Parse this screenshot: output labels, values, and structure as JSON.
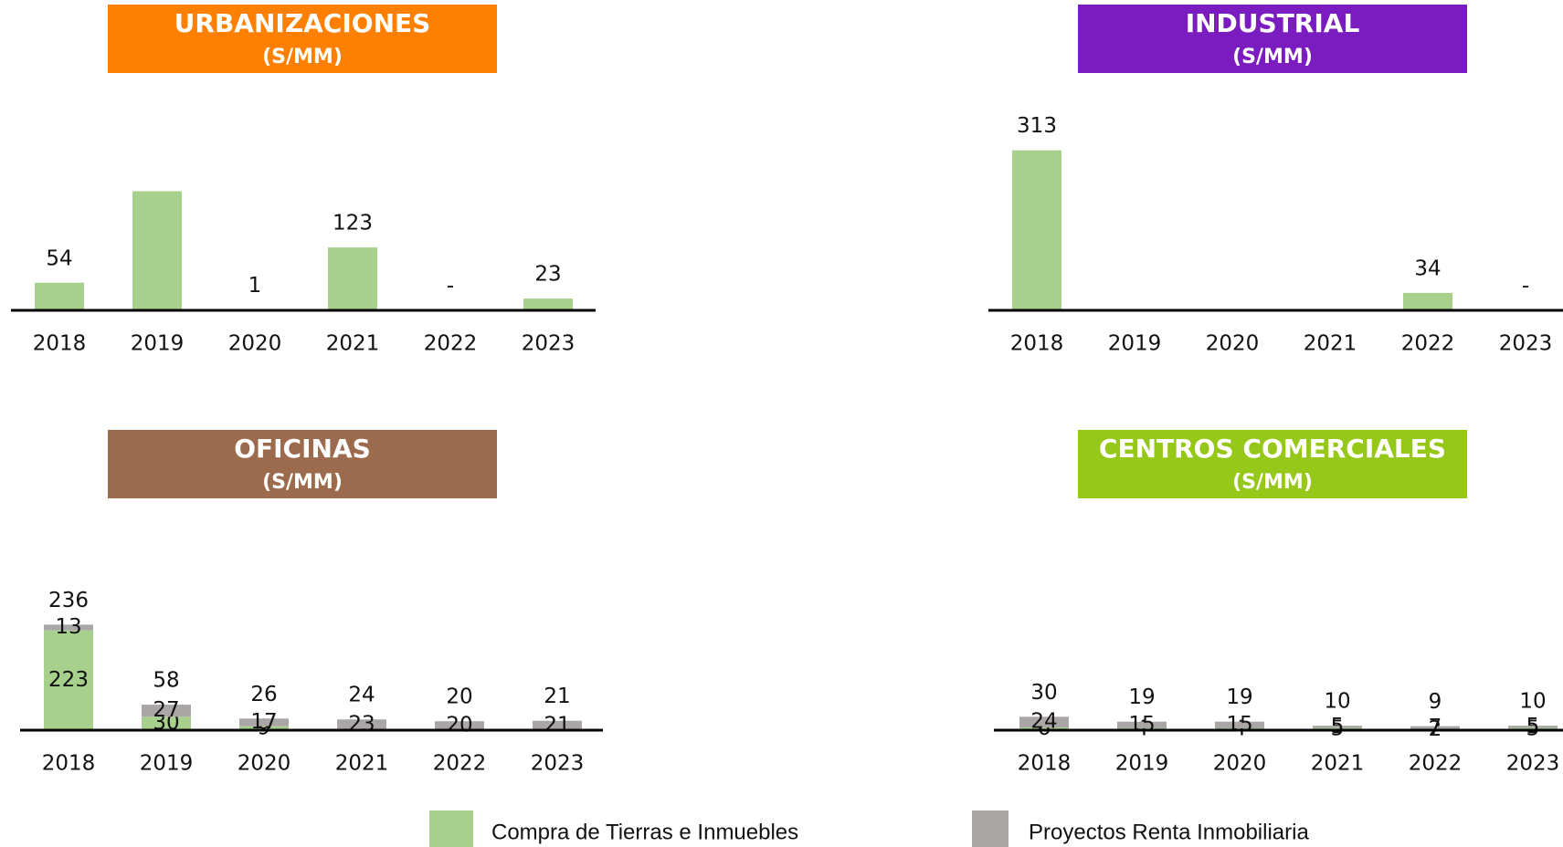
{
  "chart_data": [
    {
      "type": "bar",
      "title": "URBANIZACIONES",
      "subtitle": "(S/MM)",
      "header_color": "#ff8000",
      "categories": [
        "2018",
        "2019",
        "2020",
        "2021",
        "2022",
        "2023"
      ],
      "ylim": [
        0,
        350
      ],
      "series": [
        {
          "name": "Compra de Tierras e Inmuebles",
          "color": "#a8d08d",
          "values": [
            54,
            233,
            1,
            123,
            0,
            23
          ],
          "value_labels": [
            "54",
            null,
            "1",
            "123",
            "-",
            "23"
          ]
        }
      ]
    },
    {
      "type": "bar",
      "title": "INDUSTRIAL",
      "subtitle": "(S/MM)",
      "header_color": "#7a1cc0",
      "categories": [
        "2018",
        "2019",
        "2020",
        "2021",
        "2022",
        "2023"
      ],
      "ylim": [
        0,
        350
      ],
      "series": [
        {
          "name": "Compra de Tierras e Inmuebles",
          "color": "#a8d08d",
          "values": [
            313,
            1,
            0,
            0,
            34,
            0
          ],
          "value_labels": [
            "313",
            null,
            null,
            null,
            "34",
            "-"
          ]
        }
      ]
    },
    {
      "type": "stacked_bar",
      "title": "OFICINAS",
      "subtitle": "(S/MM)",
      "header_color": "#9c6b4e",
      "categories": [
        "2018",
        "2019",
        "2020",
        "2021",
        "2022",
        "2023"
      ],
      "ylim": [
        0,
        400
      ],
      "totals": [
        236,
        58,
        26,
        24,
        20,
        21
      ],
      "series": [
        {
          "name": "Compra de Tierras e Inmuebles",
          "color": "#a8d08d",
          "values": [
            223,
            30,
            9,
            1,
            0,
            0
          ],
          "value_labels": [
            "223",
            "30",
            "9",
            null,
            null,
            null
          ]
        },
        {
          "name": "Proyectos Renta Inmobiliaria",
          "color": "#aaa6a6",
          "values": [
            13,
            27,
            17,
            23,
            20,
            21
          ]
        }
      ]
    },
    {
      "type": "stacked_bar",
      "title": "CENTROS COMERCIALES",
      "subtitle": "(S/MM)",
      "header_color": "#96c81a",
      "categories": [
        "2018",
        "2019",
        "2020",
        "2021",
        "2022",
        "2023"
      ],
      "ylim": [
        0,
        400
      ],
      "totals": [
        30,
        19,
        19,
        10,
        9,
        10
      ],
      "series": [
        {
          "name": "Compra de Tierras e Inmuebles",
          "color": "#a8d08d",
          "values": [
            6,
            4,
            4,
            5,
            2,
            5
          ]
        },
        {
          "name": "Proyectos Renta Inmobiliaria",
          "color": "#aaa6a6",
          "values": [
            24,
            15,
            15,
            5,
            7,
            5
          ]
        }
      ]
    }
  ]
}
